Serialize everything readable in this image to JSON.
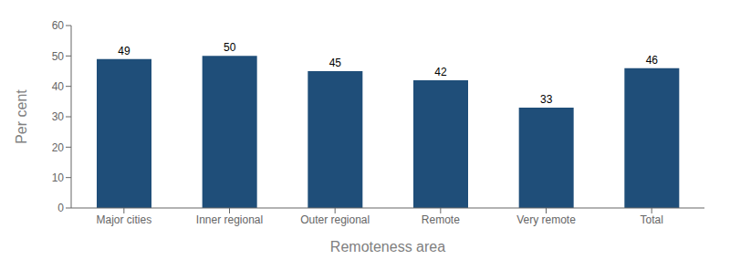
{
  "chart_data": {
    "type": "bar",
    "categories": [
      "Major cities",
      "Inner regional",
      "Outer regional",
      "Remote",
      "Very remote",
      "Total"
    ],
    "values": [
      49,
      50,
      45,
      42,
      33,
      46
    ],
    "color": "#1F4E79",
    "xlabel": "Remoteness area",
    "ylabel": "Per cent",
    "ylim": [
      0,
      60
    ],
    "yticks": [
      0,
      10,
      20,
      30,
      40,
      50,
      60
    ],
    "grid": false,
    "data_labels": true
  }
}
